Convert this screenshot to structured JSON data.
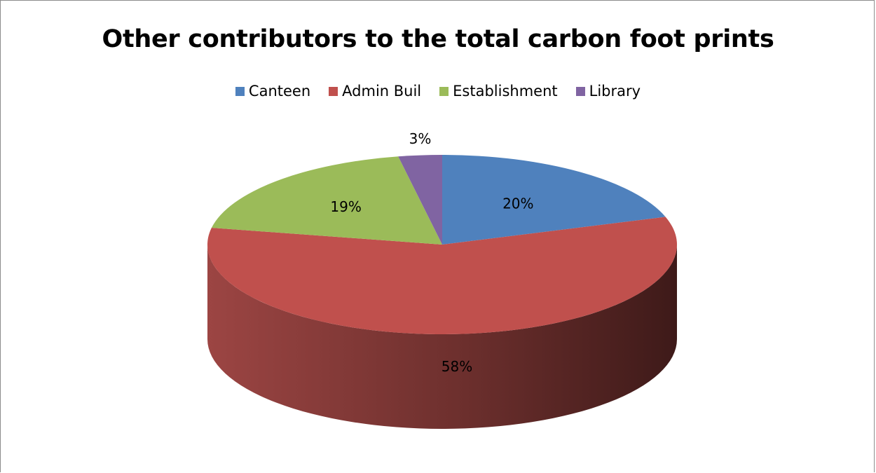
{
  "chart_data": {
    "type": "pie",
    "title": "Other contributors to the total carbon foot prints",
    "legend_position": "top",
    "slices": [
      {
        "label": "Canteen",
        "value": 20,
        "display": "20%",
        "color": "#4f81bd"
      },
      {
        "label": "Admin Buil",
        "value": 58,
        "display": "58%",
        "color": "#c0504d"
      },
      {
        "label": "Establishment",
        "value": 19,
        "display": "19%",
        "color": "#9bbb59"
      },
      {
        "label": "Library",
        "value": 3,
        "display": "3%",
        "color": "#8064a2"
      }
    ]
  }
}
